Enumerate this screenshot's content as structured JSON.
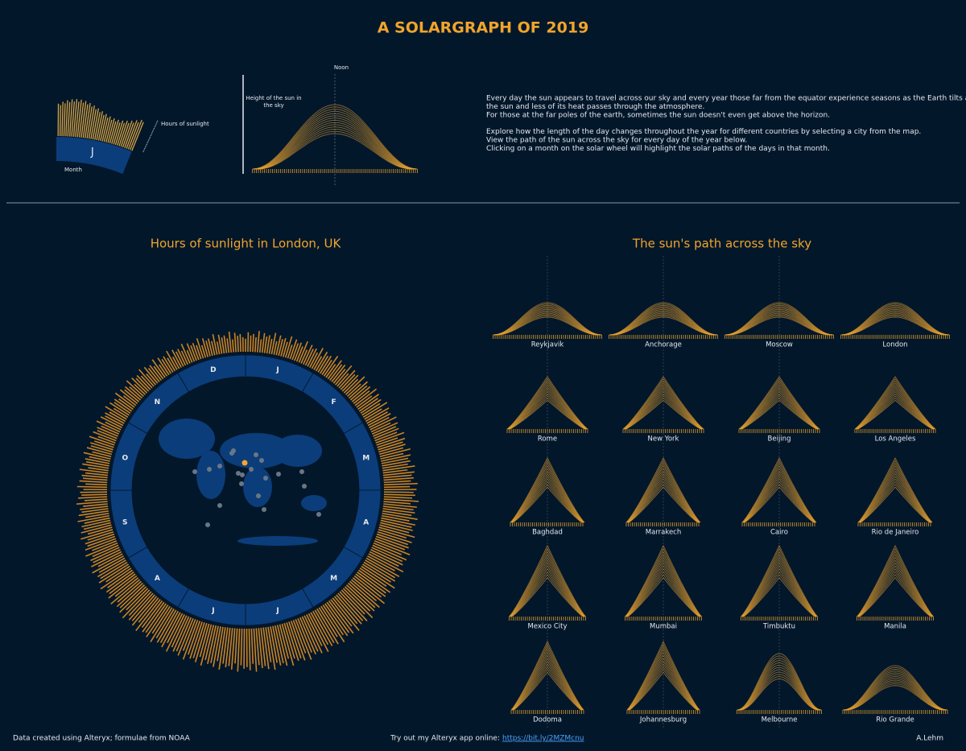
{
  "header": {
    "title": "A SOLARGRAPH OF 2019"
  },
  "legend": {
    "hours_label": "Hours of sunlight",
    "month_label": "Month",
    "month_example": "J",
    "height_label": "Height of the sun in the sky",
    "noon_label": "Noon"
  },
  "description": [
    [
      "Every day the sun appears to travel across our sky and every year those far from the equator experience seasons as the Earth tilts away from",
      "the sun and less of its heat passes through the atmosphere.",
      "For those at the far poles of the earth, sometimes the sun doesn't even get above the horizon."
    ],
    [
      "Explore how the length of the day changes throughout the year for different countries by selecting a city from the map.",
      "View the path of the sun across the sky for every day of the year below.",
      "Clicking on a month on the solar wheel will highlight the solar paths of the days in that month."
    ]
  ],
  "wheel": {
    "title": "Hours of sunlight in London, UK",
    "months": [
      "J",
      "F",
      "M",
      "A",
      "M",
      "J",
      "J",
      "A",
      "S",
      "O",
      "N",
      "D"
    ]
  },
  "paths": {
    "title": "The sun's path across the sky",
    "cities": [
      "Reykjavik",
      "Anchorage",
      "Moscow",
      "London",
      "Rome",
      "New York",
      "Beijing",
      "Los Angeles",
      "Baghdad",
      "Marrakech",
      "Cairo",
      "Rio de Janeiro",
      "Mexico City",
      "Mumbai",
      "Timbuktu",
      "Manila",
      "Dodoma",
      "Johannesburg",
      "Melbourne",
      "Rio Grande"
    ]
  },
  "footer": {
    "credit": "Data created using Alteryx; formulae from NOAA",
    "app_prompt": "Try out my Alteryx app online:",
    "app_link": "https://bit.ly/2MZMcnu",
    "author": "A.Lehm"
  }
}
